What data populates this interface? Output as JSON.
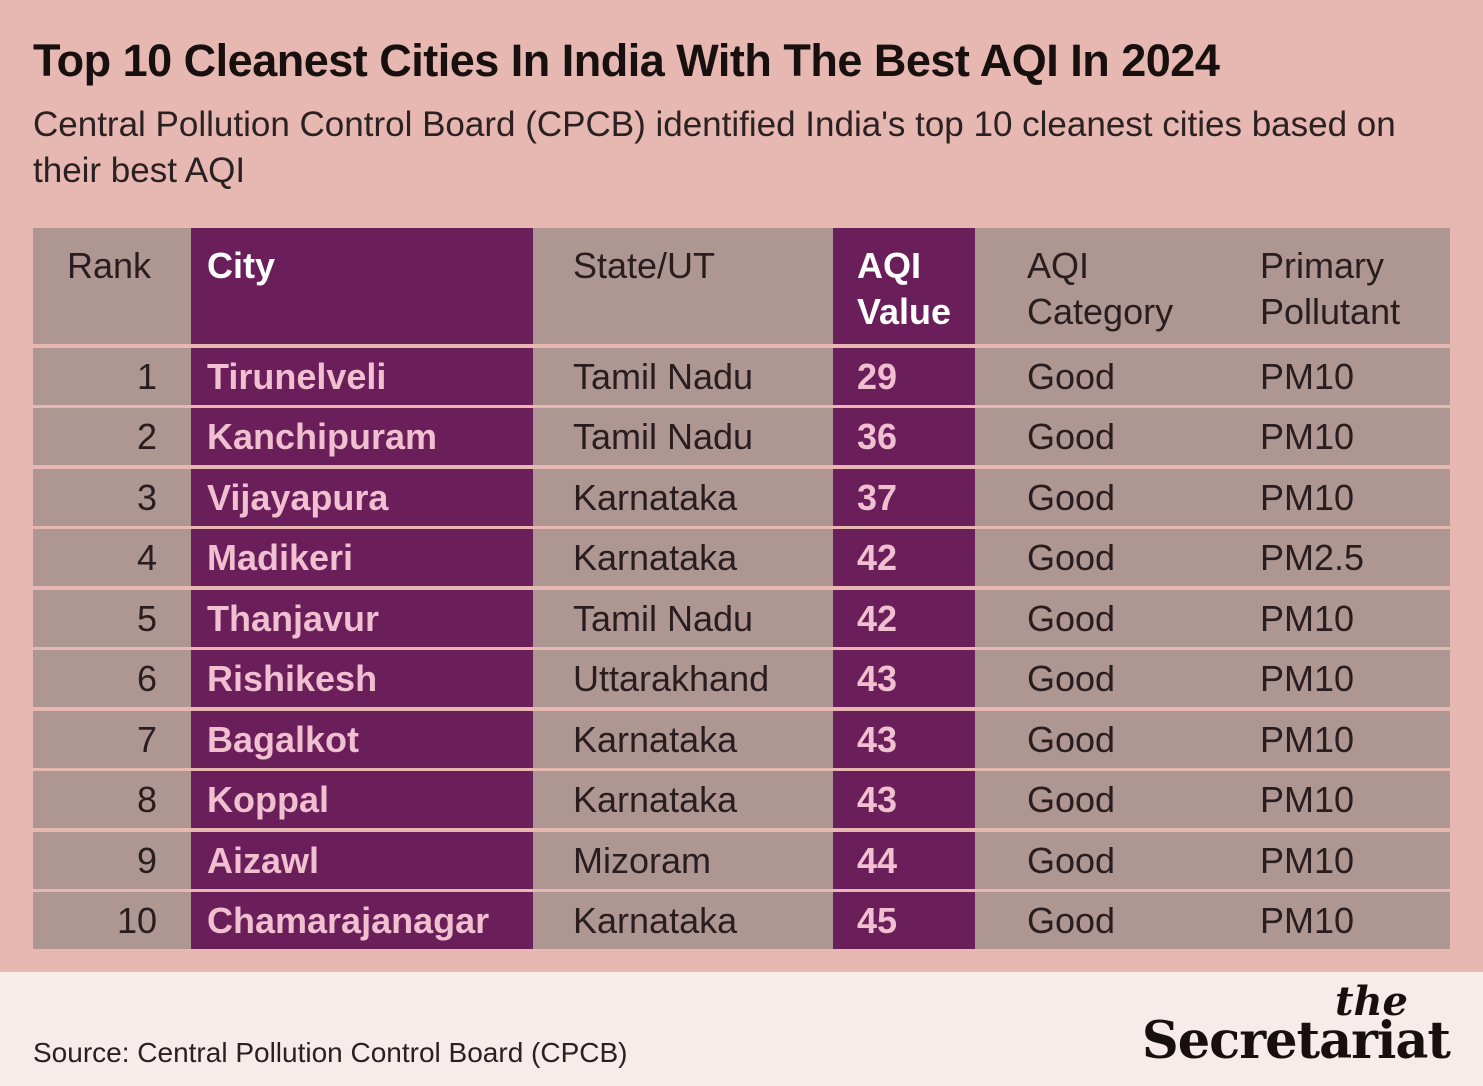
{
  "title": "Top 10 Cleanest Cities In India With The Best AQI In 2024",
  "subtitle": "Central Pollution Control Board (CPCB) identified India's top 10 cleanest cities based on their best AQI",
  "source": "Source: Central Pollution Control Board (CPCB)",
  "brand": {
    "the": "the",
    "name": "Secretariat"
  },
  "colors": {
    "background": "#e6b8b1",
    "highlight_column": "#6a1e5a",
    "highlight_text": "#f0bfd0",
    "cell_background": "#ae9693",
    "footer": "#f7ecea"
  },
  "chart_data": {
    "type": "table",
    "columns": [
      "Rank",
      "City",
      "State/UT",
      "AQI Value",
      "AQI Category",
      "Primary Pollutant"
    ],
    "rows": [
      [
        "1",
        "Tirunelveli",
        "Tamil Nadu",
        "29",
        "Good",
        "PM10"
      ],
      [
        "2",
        "Kanchipuram",
        "Tamil Nadu",
        "36",
        "Good",
        "PM10"
      ],
      [
        "3",
        "Vijayapura",
        "Karnataka",
        "37",
        "Good",
        "PM10"
      ],
      [
        "4",
        "Madikeri",
        "Karnataka",
        "42",
        "Good",
        "PM2.5"
      ],
      [
        "5",
        "Thanjavur",
        "Tamil Nadu",
        "42",
        "Good",
        "PM10"
      ],
      [
        "6",
        "Rishikesh",
        "Uttarakhand",
        "43",
        "Good",
        "PM10"
      ],
      [
        "7",
        "Bagalkot",
        "Karnataka",
        "43",
        "Good",
        "PM10"
      ],
      [
        "8",
        "Koppal",
        "Karnataka",
        "43",
        "Good",
        "PM10"
      ],
      [
        "9",
        "Aizawl",
        "Mizoram",
        "44",
        "Good",
        "PM10"
      ],
      [
        "10",
        "Chamarajanagar",
        "Karnataka",
        "45",
        "Good",
        "PM10"
      ]
    ]
  }
}
